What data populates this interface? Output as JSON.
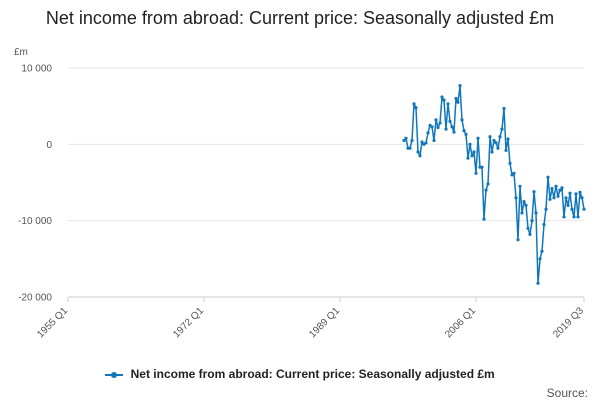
{
  "colors": {
    "series": "#1177bb",
    "grid": "#e6e6e6",
    "axis": "#cccccc"
  },
  "chart_data": {
    "type": "line",
    "title": "Net income from abroad: Current price: Seasonally adjusted £m",
    "ylabel": "£m",
    "xlabel": "",
    "ylim": [
      -20000,
      10000
    ],
    "yticks": [
      {
        "value": 10000,
        "label": "10 000"
      },
      {
        "value": 0,
        "label": "0"
      },
      {
        "value": -10000,
        "label": "-10 000"
      },
      {
        "value": -20000,
        "label": "-20 000"
      }
    ],
    "xrange": [
      1955.0,
      2019.5
    ],
    "xticks": [
      {
        "value": 1955.0,
        "label": "1955 Q1"
      },
      {
        "value": 1972.0,
        "label": "1972 Q1"
      },
      {
        "value": 1989.0,
        "label": "1989 Q1"
      },
      {
        "value": 2006.0,
        "label": "2006 Q1"
      },
      {
        "value": 2019.5,
        "label": "2019 Q3"
      }
    ],
    "grid": "horizontal",
    "legend_position": "bottom",
    "series": [
      {
        "name": "Net income from abroad: Current price: Seasonally adjusted £m",
        "x": [
          1997.0,
          1997.25,
          1997.5,
          1997.75,
          1998.0,
          1998.25,
          1998.5,
          1998.75,
          1999.0,
          1999.25,
          1999.5,
          1999.75,
          2000.0,
          2000.25,
          2000.5,
          2000.75,
          2001.0,
          2001.25,
          2001.5,
          2001.75,
          2002.0,
          2002.25,
          2002.5,
          2002.75,
          2003.0,
          2003.25,
          2003.5,
          2003.75,
          2004.0,
          2004.25,
          2004.5,
          2004.75,
          2005.0,
          2005.25,
          2005.5,
          2005.75,
          2006.0,
          2006.25,
          2006.5,
          2006.75,
          2007.0,
          2007.25,
          2007.5,
          2007.75,
          2008.0,
          2008.25,
          2008.5,
          2008.75,
          2009.0,
          2009.25,
          2009.5,
          2009.75,
          2010.0,
          2010.25,
          2010.5,
          2010.75,
          2011.0,
          2011.25,
          2011.5,
          2011.75,
          2012.0,
          2012.25,
          2012.5,
          2012.75,
          2013.0,
          2013.25,
          2013.5,
          2013.75,
          2014.0,
          2014.25,
          2014.5,
          2014.75,
          2015.0,
          2015.25,
          2015.5,
          2015.75,
          2016.0,
          2016.25,
          2016.5,
          2016.75,
          2017.0,
          2017.25,
          2017.5,
          2017.75,
          2018.0,
          2018.25,
          2018.5,
          2018.75,
          2019.0,
          2019.25,
          2019.5
        ],
        "values": [
          500,
          800,
          -500,
          -500,
          500,
          5300,
          4800,
          -1000,
          -1500,
          300,
          0,
          200,
          1500,
          2500,
          2300,
          500,
          3200,
          2200,
          2800,
          6200,
          5800,
          2000,
          5300,
          3000,
          2300,
          1600,
          6000,
          5500,
          7700,
          3200,
          1800,
          1300,
          -1800,
          0,
          -1500,
          -1000,
          -3800,
          800,
          -3000,
          -3000,
          -9800,
          -6000,
          -5200,
          1000,
          -1000,
          500,
          200,
          -500,
          1000,
          2000,
          4700,
          -800,
          700,
          -2500,
          -4000,
          -3800,
          -7000,
          -12500,
          -5500,
          -9000,
          -7500,
          -8000,
          -11000,
          -11800,
          -10000,
          -6200,
          -9000,
          -18200,
          -15000,
          -14000,
          -10500,
          -8500,
          -4300,
          -7200,
          -5800,
          -7000,
          -5500,
          -6800,
          -6000,
          -5700,
          -9500,
          -7000,
          -8000,
          -6400,
          -8500,
          -9500,
          -6500,
          -9500,
          -6300,
          -7000,
          -8500
        ]
      }
    ]
  },
  "legend": {
    "label": "Net income from abroad: Current price: Seasonally adjusted £m"
  },
  "source": {
    "label": "Source:"
  }
}
